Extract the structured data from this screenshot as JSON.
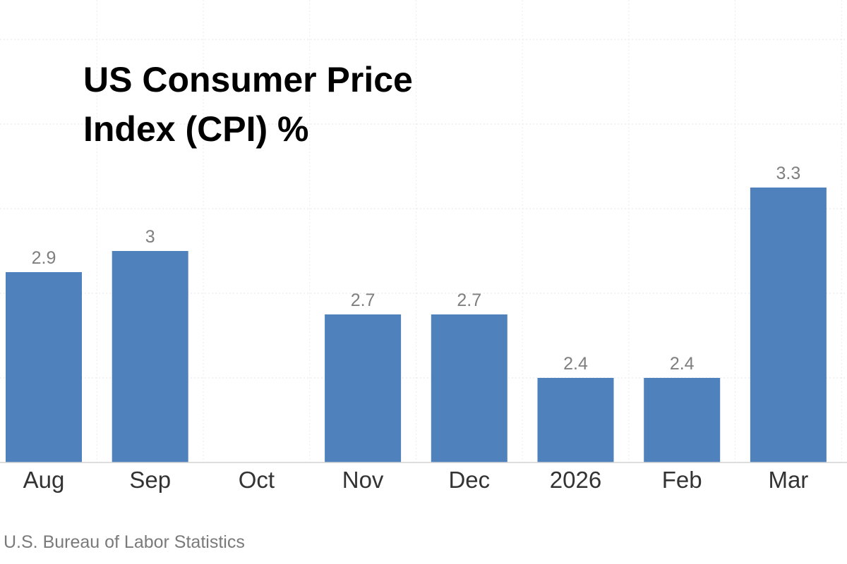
{
  "chart_data": {
    "type": "bar",
    "title_lines": [
      "US Consumer Price",
      "Index (CPI) %"
    ],
    "categories": [
      "Aug",
      "Sep",
      "Oct",
      "Nov",
      "Dec",
      "2026",
      "Feb",
      "Mar"
    ],
    "values": [
      2.9,
      3,
      null,
      2.7,
      2.7,
      2.4,
      2.4,
      3.3
    ],
    "data_labels": [
      "2.9",
      "3",
      "",
      "2.7",
      "2.7",
      "2.4",
      "2.4",
      "3.3"
    ],
    "xlabel": "",
    "ylabel": "",
    "ylim": [
      2.0,
      4.2
    ],
    "gridlines": [
      2.0,
      2.4,
      2.8,
      3.2,
      3.6,
      4.0
    ],
    "grid": true,
    "legend": "none",
    "bar_color": "#4f81bd",
    "label_color": "#7f7f7f",
    "source": "U.S. Bureau of Labor Statistics"
  }
}
